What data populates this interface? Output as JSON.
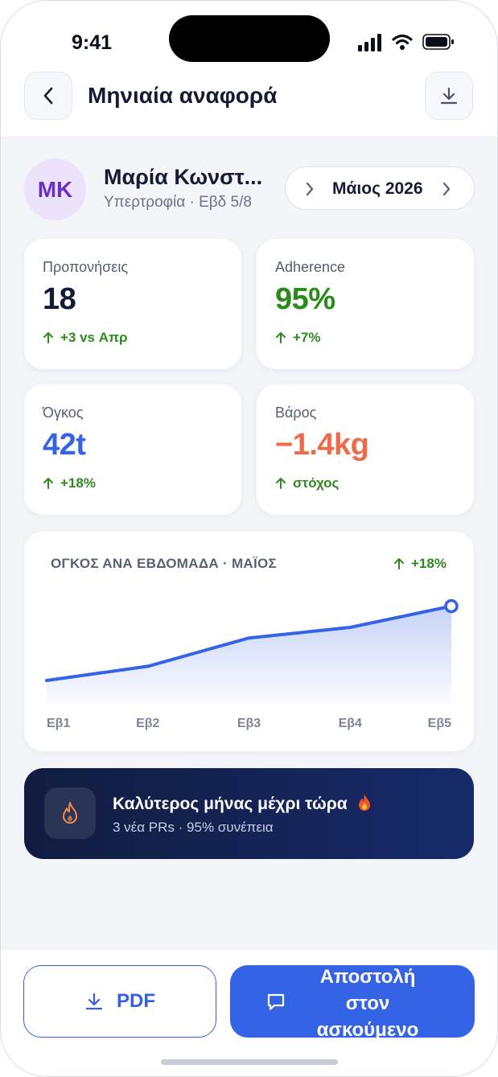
{
  "status_bar": {
    "time": "9:41"
  },
  "header": {
    "title": "Μηνιαία αναφορά",
    "back_icon": "chevron-left-icon",
    "download_icon": "download-icon"
  },
  "profile": {
    "initials": "MK",
    "name": "Μαρία Κωνστ...",
    "subtitle": "Υπερτροφία · Εβδ 5/8",
    "month": "Μάιος 2026"
  },
  "stats": [
    {
      "label": "Προπονήσεις",
      "value": "18",
      "delta": "+3 vs Απρ",
      "color": "#131a33"
    },
    {
      "label": "Adherence",
      "value": "95%",
      "delta": "+7%",
      "color": "#2a8a1a"
    },
    {
      "label": "Όγκος",
      "value": "42t",
      "delta": "+18%",
      "color": "#3563e6"
    },
    {
      "label": "Βάρος",
      "value": "−1.4kg",
      "delta": "στόχος",
      "color": "#f06a4a"
    }
  ],
  "chart_data": {
    "type": "area",
    "title": "ΟΓΚΟΣ ΑΝΑ ΕΒΔΟΜΑΔΑ · ΜΑΪΟΣ",
    "delta": "+18%",
    "categories": [
      "Εβ1",
      "Εβ2",
      "Εβ3",
      "Εβ4",
      "Εβ5"
    ],
    "values": [
      7.0,
      7.4,
      8.2,
      8.5,
      9.1
    ],
    "ylim": [
      6.5,
      9.5
    ],
    "grid": false,
    "color": "#3563e6"
  },
  "banner": {
    "title": "Καλύτερος μήνας μέχρι τώρα",
    "subtitle": "3 νέα PRs · 95% συνέπεια",
    "icon": "flame-icon"
  },
  "actions": {
    "pdf_label": "PDF",
    "send_label": "Αποστολή στον ασκούμενο"
  }
}
